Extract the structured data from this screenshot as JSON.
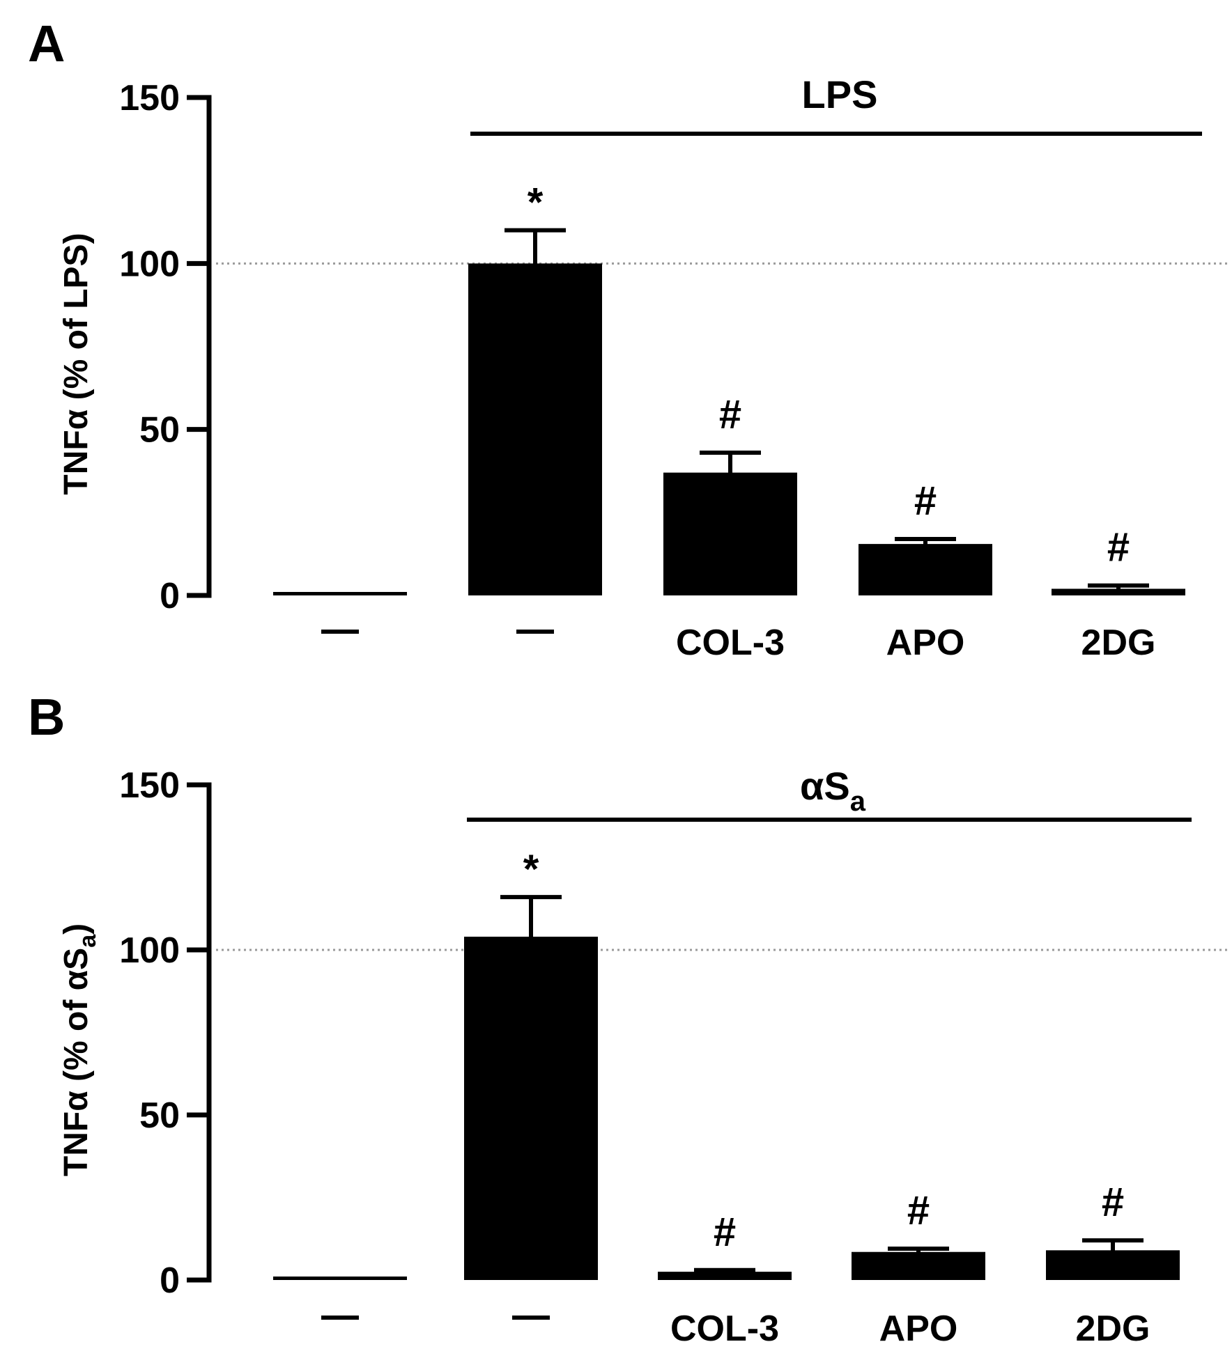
{
  "chart_data": [
    {
      "type": "bar",
      "panel": "A",
      "ylabel": "TNFα (% of LPS)",
      "ylim": [
        0,
        150
      ],
      "yticks": [
        0,
        50,
        100,
        150
      ],
      "reference_line": 100,
      "group_label": "LPS",
      "categories": [
        "—",
        "—",
        "COL-3",
        "APO",
        "2DG"
      ],
      "values": [
        0.5,
        100,
        37,
        15.5,
        2
      ],
      "errors": [
        0,
        10,
        6,
        1.5,
        1
      ],
      "annotations": [
        "",
        "*",
        "#",
        "#",
        "#"
      ]
    },
    {
      "type": "bar",
      "panel": "B",
      "ylabel_main": "TNFα (% of αS",
      "ylabel_sub": "a",
      "ylabel_end": ")",
      "ylim": [
        0,
        150
      ],
      "yticks": [
        0,
        50,
        100,
        150
      ],
      "reference_line": 100,
      "group_label_main": "αS",
      "group_label_sub": "a",
      "categories": [
        "—",
        "—",
        "COL-3",
        "APO",
        "2DG"
      ],
      "values": [
        0.5,
        104,
        2.5,
        8.5,
        9
      ],
      "errors": [
        0,
        12,
        0.5,
        1,
        3
      ],
      "annotations": [
        "",
        "*",
        "#",
        "#",
        "#"
      ]
    }
  ]
}
